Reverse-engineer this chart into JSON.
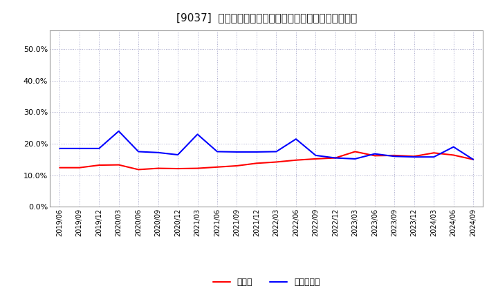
{
  "title": "[9037]  現頴金、有利子負債の総資産に対する比率の推移",
  "x_labels": [
    "2019/06",
    "2019/09",
    "2019/12",
    "2020/03",
    "2020/06",
    "2020/09",
    "2020/12",
    "2021/03",
    "2021/06",
    "2021/09",
    "2021/12",
    "2022/03",
    "2022/06",
    "2022/09",
    "2022/12",
    "2023/03",
    "2023/06",
    "2023/09",
    "2023/12",
    "2024/03",
    "2024/06",
    "2024/09"
  ],
  "cash": [
    0.124,
    0.124,
    0.132,
    0.133,
    0.118,
    0.122,
    0.121,
    0.122,
    0.126,
    0.13,
    0.138,
    0.142,
    0.148,
    0.152,
    0.155,
    0.175,
    0.162,
    0.163,
    0.16,
    0.171,
    0.164,
    0.15
  ],
  "debt": [
    0.185,
    0.185,
    0.185,
    0.24,
    0.175,
    0.172,
    0.165,
    0.23,
    0.175,
    0.174,
    0.174,
    0.175,
    0.215,
    0.163,
    0.155,
    0.152,
    0.168,
    0.16,
    0.158,
    0.158,
    0.19,
    0.15
  ],
  "cash_color": "#ff0000",
  "debt_color": "#0000ff",
  "cash_label": "現頴金",
  "debt_label": "有利子負債",
  "ylim": [
    0.0,
    0.56
  ],
  "yticks": [
    0.0,
    0.1,
    0.2,
    0.3,
    0.4,
    0.5
  ],
  "background_color": "#ffffff",
  "plot_bg_color": "#ffffff",
  "grid_color": "#aaaacc",
  "title_fontsize": 11,
  "legend_fontsize": 9,
  "line_width": 1.5
}
